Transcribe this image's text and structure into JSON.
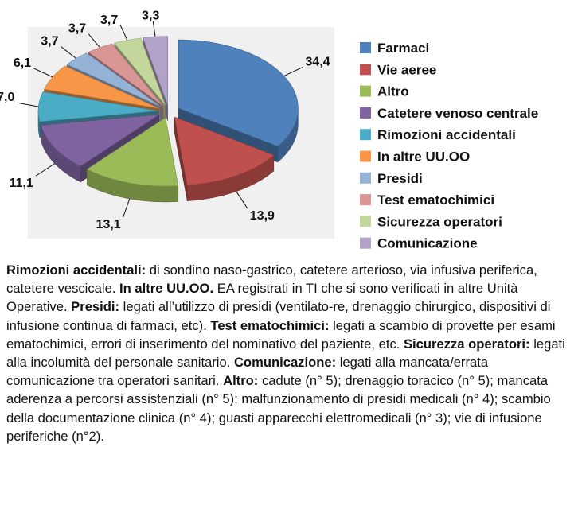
{
  "chart_data": {
    "type": "pie",
    "style": "3d exploded",
    "legend_position": "right",
    "categories": [
      "Farmaci",
      "Vie aeree",
      "Altro",
      "Catetere venoso centrale",
      "Rimozioni accidentali",
      "In altre UU.OO",
      "Presidi",
      "Test ematochimici",
      "Sicurezza operatori",
      "Comunicazione"
    ],
    "values": [
      34.4,
      13.9,
      13.1,
      11.1,
      7.0,
      6.1,
      3.7,
      3.7,
      3.7,
      3.3
    ],
    "value_labels": [
      "34,4",
      "13,9",
      "13,1",
      "11,1",
      "7,0",
      "6,1",
      "3,7",
      "3,7",
      "3,7",
      "3,3"
    ],
    "colors": [
      "#4f81bd",
      "#c0504d",
      "#9bbb59",
      "#8064a2",
      "#4bacc6",
      "#f79646",
      "#95b3d7",
      "#d99694",
      "#c3d69b",
      "#b3a2c7"
    ]
  },
  "caption": [
    {
      "term": "Rimozioni accidentali:",
      "text": " di sondino naso-gastrico, catetere arterioso, via infusiva periferica, catetere vescicale. "
    },
    {
      "term": "In altre UU.OO.",
      "text": "  EA registrati in TI che si sono verificati in altre Unità Operative. "
    },
    {
      "term": "Presidi:",
      "text": " legati all’utilizzo di presidi (ventilato-re, drenaggio chirurgico, dispositivi di infusione continua di farmaci, etc). "
    },
    {
      "term": "Test ematochimici:",
      "text": " legati a scambio di provette per esami ematochimici, errori di inserimento del nominativo del paziente, etc. "
    },
    {
      "term": "Sicurezza operatori:",
      "text": " legati alla incolumità del personale sanitario. "
    },
    {
      "term": "Comunicazione:",
      "text": " legati alla mancata/errata comunicazione tra operatori sanitari. "
    },
    {
      "term": "Altro:",
      "text": " cadute (n° 5); drenaggio toracico (n° 5); mancata aderenza a percorsi assistenziali (n° 5); malfunzionamento di presidi medicali (n° 4); scambio della documentazione clinica (n° 4); guasti apparecchi elettromedicali (n° 3); vie di infusione periferiche (n°2)."
    }
  ]
}
